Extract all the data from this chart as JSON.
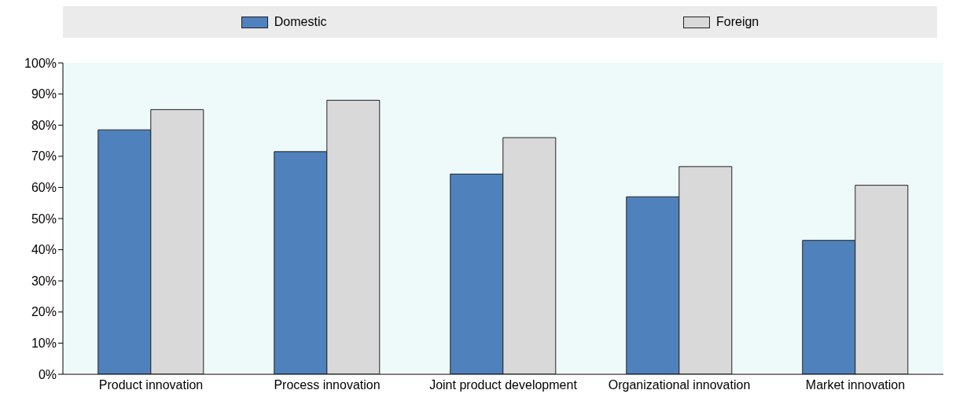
{
  "chart_data": {
    "type": "bar",
    "categories": [
      "Product innovation",
      "Process innovation",
      "Joint product development",
      "Organizational innovation",
      "Market innovation"
    ],
    "series": [
      {
        "name": "Domestic",
        "color": "#4f81bd",
        "values": [
          78.5,
          71.5,
          64.3,
          57,
          43
        ]
      },
      {
        "name": "Foreign",
        "color": "#d9d9d9",
        "values": [
          85,
          88,
          76,
          66.7,
          60.7
        ]
      }
    ],
    "ylim": [
      0,
      100
    ],
    "yticks": [
      {
        "value": 0,
        "label": "0%"
      },
      {
        "value": 10,
        "label": "10%"
      },
      {
        "value": 20,
        "label": "20%"
      },
      {
        "value": 30,
        "label": "30%"
      },
      {
        "value": 40,
        "label": "40%"
      },
      {
        "value": 50,
        "label": "50%"
      },
      {
        "value": 60,
        "label": "60%"
      },
      {
        "value": 70,
        "label": "70%"
      },
      {
        "value": 80,
        "label": "80%"
      },
      {
        "value": 90,
        "label": "90%"
      },
      {
        "value": 100,
        "label": "100%"
      }
    ],
    "grid": false,
    "legend": "top"
  }
}
